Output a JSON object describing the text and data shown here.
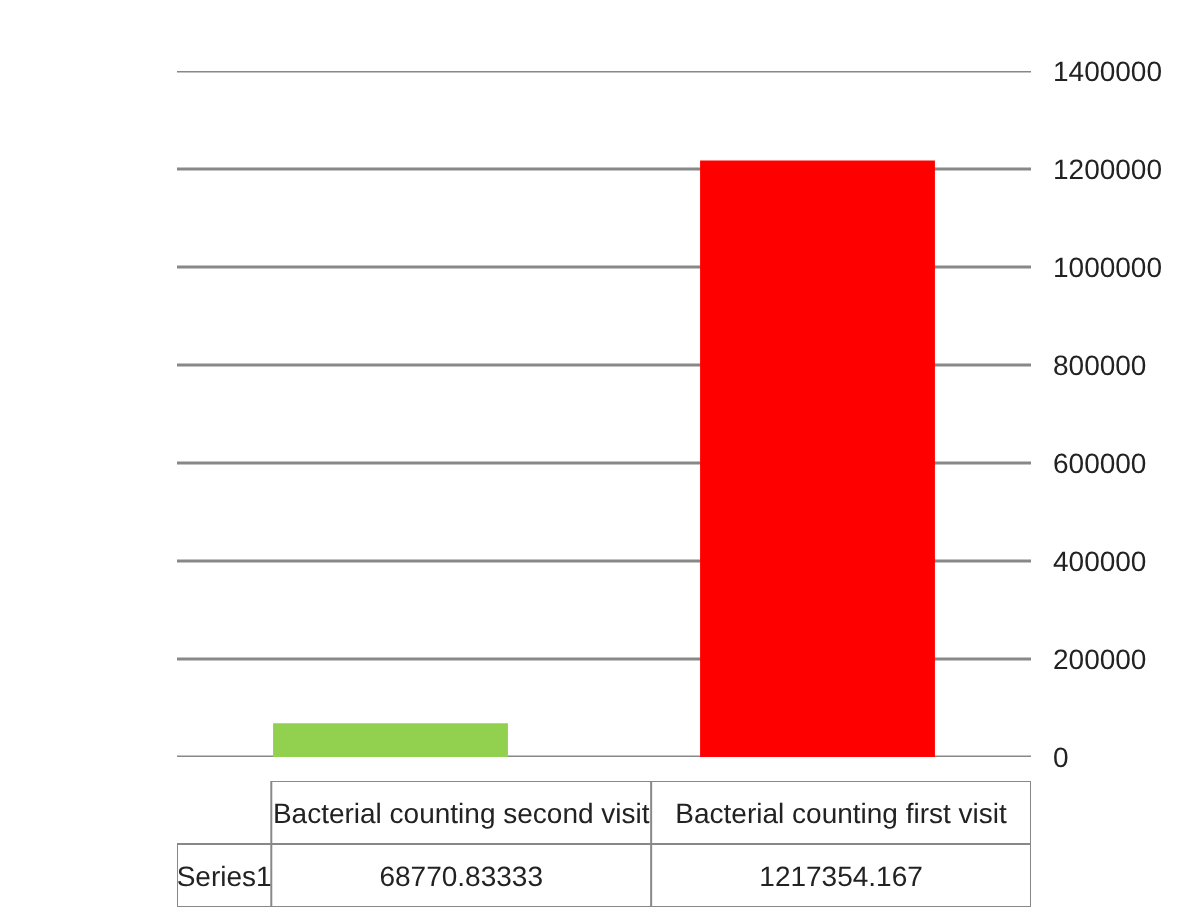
{
  "chart_data": {
    "type": "bar",
    "categories": [
      "Bacterial counting second visit",
      "Bacterial counting first visit"
    ],
    "series": [
      {
        "name": "Series1",
        "colors": [
          "#92d050",
          "#ff0000"
        ],
        "values": [
          68770.83333,
          1217354.167
        ]
      }
    ],
    "ylim": [
      0,
      1400000
    ],
    "yticks": [
      0,
      200000,
      400000,
      600000,
      800000,
      1000000,
      1200000,
      1400000
    ],
    "grid": "y",
    "data_labels": true
  }
}
